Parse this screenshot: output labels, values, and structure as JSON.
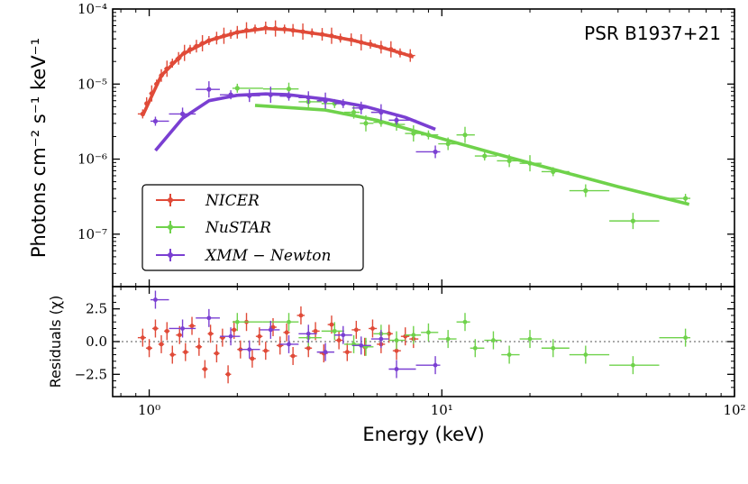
{
  "chart_data": [
    {
      "type": "scatter",
      "title": "",
      "annotation": "PSR B1937+21",
      "xlabel": "",
      "ylabel": "Photons cm⁻² s⁻¹ keV⁻¹",
      "xscale": "log",
      "yscale": "log",
      "xlim": [
        0.75,
        100
      ],
      "ylim": [
        2e-08,
        0.0001
      ],
      "y_tick_labels": [
        "10⁻⁷",
        "10⁻⁶",
        "10⁻⁵",
        "10⁻⁴"
      ],
      "legend": {
        "placement": "lower-left",
        "entries": [
          "NICER",
          "NuSTAR",
          "XMM − Newton"
        ]
      },
      "series": [
        {
          "name": "NICER",
          "color": "#e04a38",
          "points": [
            [
              0.95,
              4e-06
            ],
            [
              0.98,
              5.5e-06
            ],
            [
              1.02,
              7.5e-06
            ],
            [
              1.06,
              1e-05
            ],
            [
              1.1,
              1.3e-05
            ],
            [
              1.15,
              1.6e-05
            ],
            [
              1.2,
              1.9e-05
            ],
            [
              1.26,
              2.2e-05
            ],
            [
              1.32,
              2.6e-05
            ],
            [
              1.38,
              2.9e-05
            ],
            [
              1.45,
              3.2e-05
            ],
            [
              1.52,
              3.5e-05
            ],
            [
              1.6,
              3.8e-05
            ],
            [
              1.7,
              4.1e-05
            ],
            [
              1.8,
              4.4e-05
            ],
            [
              1.9,
              4.6e-05
            ],
            [
              2.0,
              4.9e-05
            ],
            [
              2.15,
              5.2e-05
            ],
            [
              2.3,
              5.4e-05
            ],
            [
              2.5,
              5.6e-05
            ],
            [
              2.7,
              5.5e-05
            ],
            [
              2.9,
              5.4e-05
            ],
            [
              3.1,
              5.2e-05
            ],
            [
              3.35,
              5e-05
            ],
            [
              3.6,
              4.8e-05
            ],
            [
              3.9,
              4.6e-05
            ],
            [
              4.2,
              4.4e-05
            ],
            [
              4.5,
              4.1e-05
            ],
            [
              4.9,
              3.9e-05
            ],
            [
              5.3,
              3.6e-05
            ],
            [
              5.7,
              3.4e-05
            ],
            [
              6.2,
              3.1e-05
            ],
            [
              6.7,
              2.9e-05
            ],
            [
              7.2,
              2.6e-05
            ],
            [
              7.8,
              2.4e-05
            ]
          ],
          "model": [
            [
              0.95,
              3.8e-06
            ],
            [
              1.1,
              1.3e-05
            ],
            [
              1.3,
              2.5e-05
            ],
            [
              1.6,
              3.8e-05
            ],
            [
              2.0,
              4.9e-05
            ],
            [
              2.5,
              5.5e-05
            ],
            [
              3.0,
              5.3e-05
            ],
            [
              4.0,
              4.5e-05
            ],
            [
              5.0,
              3.8e-05
            ],
            [
              6.0,
              3.2e-05
            ],
            [
              7.0,
              2.7e-05
            ],
            [
              8.0,
              2.3e-05
            ]
          ]
        },
        {
          "name": "NuSTAR",
          "color": "#6fd24b",
          "points": [
            [
              2.0,
              8.8e-06
            ],
            [
              3.0,
              8.6e-06
            ],
            [
              3.5,
              5.8e-06
            ],
            [
              4.3,
              5.5e-06
            ],
            [
              5.0,
              4.2e-06
            ],
            [
              5.5,
              3e-06
            ],
            [
              6.2,
              3.1e-06
            ],
            [
              7.0,
              2.9e-06
            ],
            [
              8.0,
              2.2e-06
            ],
            [
              9.0,
              2.1e-06
            ],
            [
              10.5,
              1.6e-06
            ],
            [
              12.0,
              2.1e-06
            ],
            [
              14.0,
              1.1e-06
            ],
            [
              17.0,
              9.5e-07
            ],
            [
              20.0,
              8.8e-07
            ],
            [
              24.0,
              6.8e-07
            ],
            [
              31.0,
              3.8e-07
            ],
            [
              45.0,
              1.5e-07
            ],
            [
              68.0,
              3e-07
            ]
          ],
          "model": [
            [
              2.3,
              5.2e-06
            ],
            [
              4.0,
              4.5e-06
            ],
            [
              6.0,
              3.3e-06
            ],
            [
              9.0,
              2.1e-06
            ],
            [
              15.0,
              1.2e-06
            ],
            [
              25.0,
              7e-07
            ],
            [
              40.0,
              4.3e-07
            ],
            [
              70.0,
              2.5e-07
            ]
          ]
        },
        {
          "name": "XMM − Newton",
          "color": "#7a3fd2",
          "points": [
            [
              1.05,
              3.2e-06
            ],
            [
              1.3,
              4e-06
            ],
            [
              1.6,
              8.5e-06
            ],
            [
              1.9,
              7.2e-06
            ],
            [
              2.2,
              7e-06
            ],
            [
              2.6,
              7.2e-06
            ],
            [
              3.0,
              6.9e-06
            ],
            [
              3.5,
              6.6e-06
            ],
            [
              4.0,
              6e-06
            ],
            [
              4.6,
              5.5e-06
            ],
            [
              5.3,
              4.8e-06
            ],
            [
              6.2,
              4.2e-06
            ],
            [
              7.0,
              3.3e-06
            ],
            [
              9.5,
              1.25e-06
            ]
          ],
          "model": [
            [
              1.05,
              1.3e-06
            ],
            [
              1.3,
              3.5e-06
            ],
            [
              1.6,
              6e-06
            ],
            [
              2.0,
              7.1e-06
            ],
            [
              2.5,
              7.4e-06
            ],
            [
              3.0,
              7.2e-06
            ],
            [
              4.0,
              6.3e-06
            ],
            [
              5.5,
              5e-06
            ],
            [
              7.5,
              3.6e-06
            ],
            [
              9.5,
              2.5e-06
            ]
          ]
        }
      ]
    },
    {
      "type": "scatter",
      "title": "",
      "xlabel": "Energy (keV)",
      "ylabel": "Residuals (χ)",
      "xscale": "log",
      "xlim": [
        0.75,
        100
      ],
      "ylim": [
        -4.2,
        4.2
      ],
      "x_tick_labels": [
        "10⁰",
        "10¹",
        "10²"
      ],
      "y_tick_labels": [
        "−2.5",
        "0.0",
        "2.5"
      ],
      "reference_line": 0.0,
      "series": [
        {
          "name": "NICER",
          "color": "#e04a38",
          "points": [
            [
              0.95,
              0.3
            ],
            [
              1.0,
              -0.5
            ],
            [
              1.05,
              1.0
            ],
            [
              1.1,
              -0.2
            ],
            [
              1.15,
              0.8
            ],
            [
              1.2,
              -1.0
            ],
            [
              1.27,
              0.5
            ],
            [
              1.33,
              -0.8
            ],
            [
              1.4,
              1.2
            ],
            [
              1.48,
              -0.4
            ],
            [
              1.55,
              -2.1
            ],
            [
              1.62,
              0.6
            ],
            [
              1.7,
              -0.9
            ],
            [
              1.78,
              0.3
            ],
            [
              1.86,
              -2.5
            ],
            [
              1.95,
              0.9
            ],
            [
              2.05,
              -0.6
            ],
            [
              2.15,
              1.5
            ],
            [
              2.25,
              -1.3
            ],
            [
              2.38,
              0.4
            ],
            [
              2.5,
              -0.7
            ],
            [
              2.65,
              1.1
            ],
            [
              2.8,
              -0.3
            ],
            [
              2.95,
              0.7
            ],
            [
              3.1,
              -1.1
            ],
            [
              3.3,
              2.0
            ],
            [
              3.5,
              -0.5
            ],
            [
              3.7,
              0.8
            ],
            [
              3.95,
              -0.9
            ],
            [
              4.2,
              1.3
            ],
            [
              4.45,
              0.1
            ],
            [
              4.75,
              -0.8
            ],
            [
              5.1,
              0.9
            ],
            [
              5.45,
              -0.4
            ],
            [
              5.8,
              1.0
            ],
            [
              6.2,
              -0.2
            ],
            [
              6.6,
              0.6
            ],
            [
              7.0,
              -0.7
            ],
            [
              7.5,
              0.4
            ],
            [
              8.0,
              0.2
            ]
          ]
        },
        {
          "name": "NuSTAR",
          "color": "#6fd24b",
          "points": [
            [
              2.0,
              1.5
            ],
            [
              3.0,
              1.5
            ],
            [
              3.5,
              0.3
            ],
            [
              4.3,
              0.8
            ],
            [
              5.0,
              -0.2
            ],
            [
              5.5,
              -0.4
            ],
            [
              6.2,
              0.6
            ],
            [
              7.0,
              0.1
            ],
            [
              8.0,
              0.5
            ],
            [
              9.0,
              0.7
            ],
            [
              10.5,
              0.2
            ],
            [
              12.0,
              1.5
            ],
            [
              13.0,
              -0.5
            ],
            [
              15.0,
              0.1
            ],
            [
              17.0,
              -1.0
            ],
            [
              20.0,
              0.2
            ],
            [
              24.0,
              -0.5
            ],
            [
              31.0,
              -1.0
            ],
            [
              45.0,
              -1.8
            ],
            [
              68.0,
              0.3
            ]
          ]
        },
        {
          "name": "XMM − Newton",
          "color": "#7a3fd2",
          "points": [
            [
              1.05,
              3.2
            ],
            [
              1.3,
              1.0
            ],
            [
              1.6,
              1.8
            ],
            [
              1.9,
              0.4
            ],
            [
              2.2,
              -0.6
            ],
            [
              2.6,
              0.9
            ],
            [
              3.0,
              -0.2
            ],
            [
              3.5,
              0.6
            ],
            [
              4.0,
              -0.8
            ],
            [
              4.6,
              0.5
            ],
            [
              5.3,
              -0.3
            ],
            [
              6.2,
              0.2
            ],
            [
              7.0,
              -2.1
            ],
            [
              9.5,
              -1.8
            ]
          ]
        }
      ]
    }
  ]
}
